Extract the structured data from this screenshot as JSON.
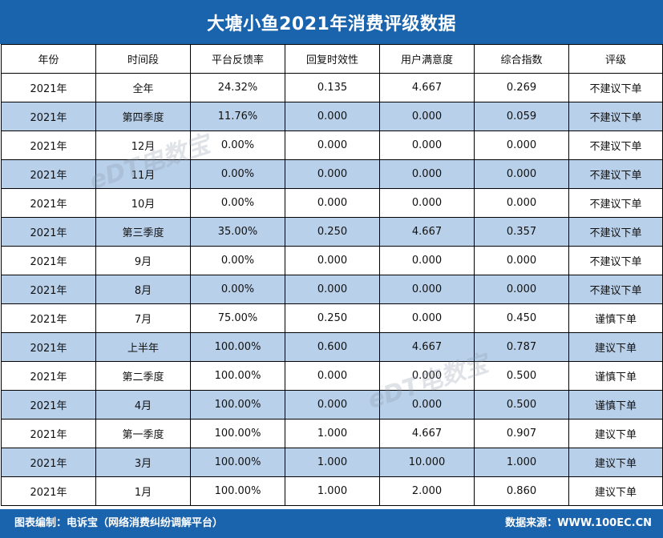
{
  "title": "大塘小鱼2021年消费评级数据",
  "headers": [
    "年份",
    "时间段",
    "平台反馈率",
    "回复时效性",
    "用户满意度",
    "综合指数",
    "评级"
  ],
  "rows": [
    [
      "2021年",
      "全年",
      "24.32%",
      "0.135",
      "4.667",
      "0.269",
      "不建议下单"
    ],
    [
      "2021年",
      "第四季度",
      "11.76%",
      "0.000",
      "0.000",
      "0.059",
      "不建议下单"
    ],
    [
      "2021年",
      "12月",
      "0.00%",
      "0.000",
      "0.000",
      "0.000",
      "不建议下单"
    ],
    [
      "2021年",
      "11月",
      "0.00%",
      "0.000",
      "0.000",
      "0.000",
      "不建议下单"
    ],
    [
      "2021年",
      "10月",
      "0.00%",
      "0.000",
      "0.000",
      "0.000",
      "不建议下单"
    ],
    [
      "2021年",
      "第三季度",
      "35.00%",
      "0.250",
      "4.667",
      "0.357",
      "不建议下单"
    ],
    [
      "2021年",
      "9月",
      "0.00%",
      "0.000",
      "0.000",
      "0.000",
      "不建议下单"
    ],
    [
      "2021年",
      "8月",
      "0.00%",
      "0.000",
      "0.000",
      "0.000",
      "不建议下单"
    ],
    [
      "2021年",
      "7月",
      "75.00%",
      "0.250",
      "0.000",
      "0.450",
      "谨慎下单"
    ],
    [
      "2021年",
      "上半年",
      "100.00%",
      "0.600",
      "4.667",
      "0.787",
      "建议下单"
    ],
    [
      "2021年",
      "第二季度",
      "100.00%",
      "0.000",
      "0.000",
      "0.500",
      "谨慎下单"
    ],
    [
      "2021年",
      "4月",
      "100.00%",
      "0.000",
      "0.000",
      "0.500",
      "谨慎下单"
    ],
    [
      "2021年",
      "第一季度",
      "100.00%",
      "1.000",
      "4.667",
      "0.907",
      "建议下单"
    ],
    [
      "2021年",
      "3月",
      "100.00%",
      "1.000",
      "10.000",
      "1.000",
      "建议下单"
    ],
    [
      "2021年",
      "1月",
      "100.00%",
      "1.000",
      "2.000",
      "0.860",
      "建议下单"
    ]
  ],
  "footer": {
    "left": "图表编制：电诉宝（网络消费纠纷调解平台）",
    "right": "数据来源：WWW.100EC.CN"
  },
  "watermark": "eDT电数宝",
  "colors": {
    "header_blue": "#1a63ad",
    "alt_row": "#b9d0ea"
  }
}
